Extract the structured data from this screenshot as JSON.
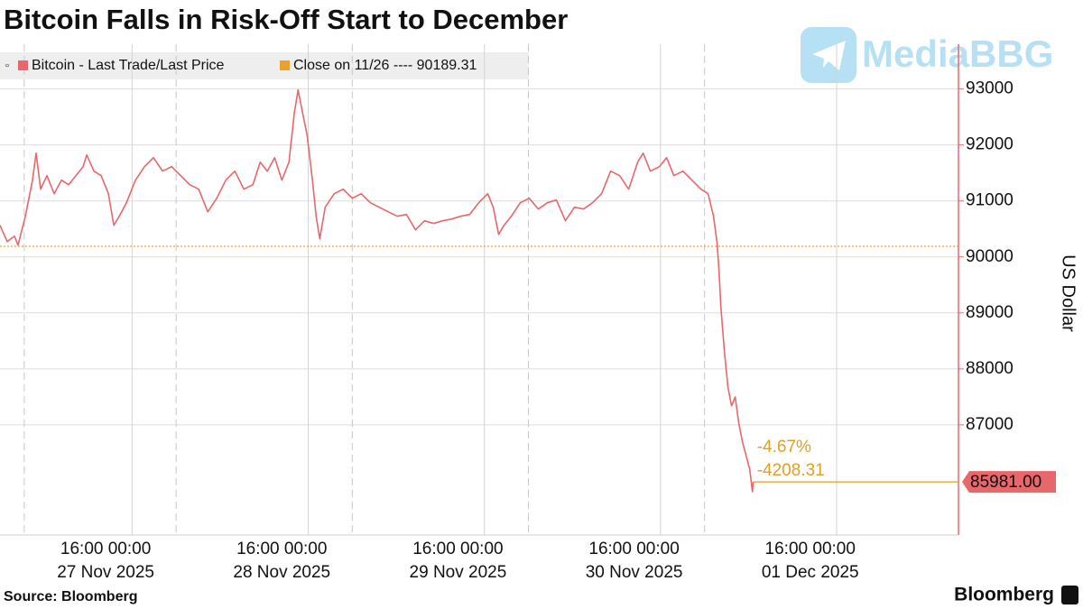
{
  "chart_data": {
    "type": "line",
    "title": "Bitcoin Falls in Risk-Off Start to December",
    "y_label": "US Dollar",
    "source": "Source: Bloomberg",
    "brand": "Bloomberg",
    "watermark": "MediaBBG",
    "x": [
      0,
      0.98,
      1.97,
      2.46,
      3.45,
      4.43,
      4.92,
      5.54,
      6.4,
      7.38,
      8.37,
      9.35,
      10.34,
      11.32,
      11.82,
      12.8,
      13.78,
      14.77,
      15.51,
      16.25,
      17.23,
      18.46,
      19.69,
      20.92,
      22.15,
      23.38,
      24.62,
      25.85,
      27.08,
      28.31,
      29.54,
      30.77,
      32,
      33.23,
      34.46,
      35.45,
      36.43,
      37.42,
      38.4,
      39.38,
      40.12,
      40.62,
      41.35,
      41.85,
      42.58,
      43.08,
      43.57,
      44.31,
      45.54,
      46.77,
      48,
      49.23,
      50.46,
      51.69,
      52.92,
      54.15,
      55.38,
      56.62,
      57.85,
      59.08,
      60.31,
      61.54,
      62.77,
      64,
      65.23,
      66.46,
      67.2,
      67.94,
      68.68,
      69.66,
      70.89,
      72.12,
      73.35,
      74.58,
      75.82,
      77.05,
      78.28,
      79.51,
      80.74,
      81.97,
      83.2,
      84.43,
      85.66,
      86.89,
      87.63,
      88.62,
      89.85,
      90.83,
      91.82,
      93.05,
      94.28,
      95.51,
      96.49,
      97.23,
      97.72,
      97.97,
      98.22,
      98.71,
      99.2,
      99.69,
      100.18,
      100.68,
      101.17,
      101.66,
      102.15,
      102.52,
      102.65
    ],
    "series": [
      {
        "name": "Bitcoin - Last Trade/Last Price",
        "color": "#e8676a",
        "values": [
          90565,
          90274,
          90371,
          90210,
          90726,
          91371,
          91855,
          91210,
          91452,
          91129,
          91371,
          91290,
          91452,
          91613,
          91823,
          91532,
          91452,
          91129,
          90565,
          90726,
          90968,
          91371,
          91613,
          91774,
          91532,
          91613,
          91452,
          91290,
          91210,
          90806,
          91048,
          91371,
          91532,
          91210,
          91290,
          91694,
          91532,
          91774,
          91371,
          91694,
          92581,
          92984,
          92500,
          92177,
          91371,
          90726,
          90323,
          90887,
          91129,
          91210,
          91048,
          91129,
          90968,
          90887,
          90806,
          90726,
          90758,
          90484,
          90645,
          90597,
          90645,
          90677,
          90726,
          90758,
          90968,
          91129,
          90887,
          90403,
          90565,
          90726,
          90968,
          91048,
          90855,
          90968,
          91016,
          90645,
          90887,
          90855,
          90968,
          91129,
          91532,
          91452,
          91210,
          91694,
          91855,
          91532,
          91613,
          91774,
          91452,
          91532,
          91371,
          91210,
          91129,
          90726,
          90242,
          89758,
          89113,
          88306,
          87661,
          87339,
          87500,
          87016,
          86694,
          86452,
          86210,
          85806,
          85981
        ]
      }
    ],
    "last_price_label": "85981.00",
    "reference": {
      "name": "Close on 11/26 ---- 90189.31",
      "value": 90189.31,
      "color": "#eda12d"
    },
    "annotations": [
      "-4.67%",
      "-4208.31"
    ],
    "annotation_color": "#e0a020",
    "xlim": [
      0,
      130.6
    ],
    "xticks": [
      {
        "value": 14.4,
        "label": "16:00 00:00"
      },
      {
        "value": 38.4,
        "label": "16:00 00:00"
      },
      {
        "value": 62.4,
        "label": "16:00 00:00"
      },
      {
        "value": 86.4,
        "label": "16:00 00:00"
      },
      {
        "value": 110.4,
        "label": "16:00 00:00"
      }
    ],
    "x_dates": [
      "27 Nov 2025",
      "28 Nov 2025",
      "29 Nov 2025",
      "30 Nov 2025",
      "01 Dec 2025"
    ],
    "xgrid": [
      18,
      42,
      66,
      90,
      114
    ],
    "xgrid_dashed": [
      3.3,
      24,
      48,
      72,
      96
    ],
    "ylim": [
      85032,
      93800
    ],
    "yticks": [
      87000,
      88000,
      89000,
      90000,
      91000,
      92000,
      93000
    ],
    "grid": true
  }
}
